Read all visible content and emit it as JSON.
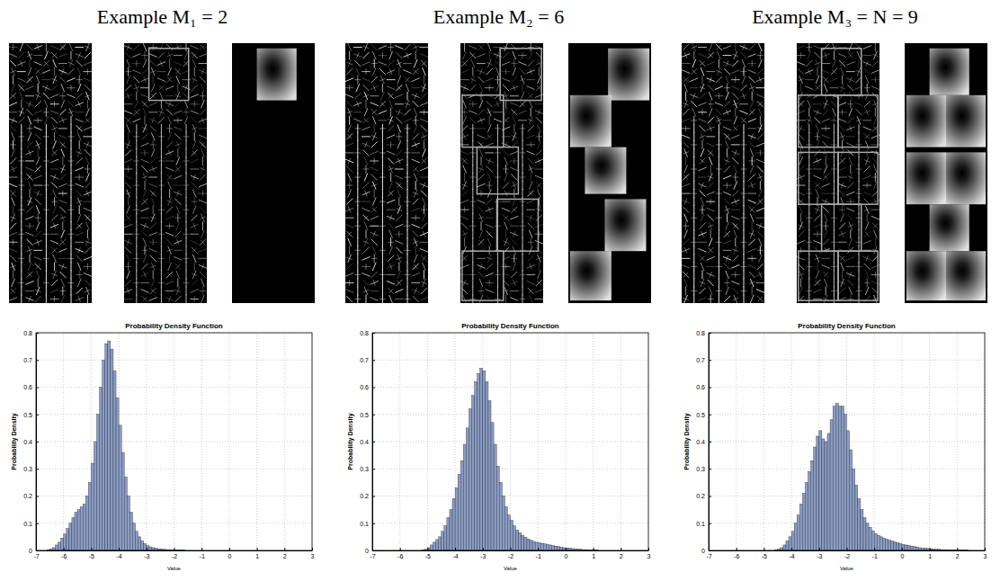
{
  "figure": {
    "panels": [
      {
        "heading": "Example M₁ = 2"
      },
      {
        "heading": "Example M₂ = 6"
      },
      {
        "heading": "Example M₃ = N = 9"
      }
    ]
  },
  "chart_data": [
    {
      "type": "histogram",
      "title": "Probability Density Function",
      "xlabel": "Value",
      "ylabel": "Probability Density",
      "bins": [
        -6.6,
        -6.5,
        -6.4,
        -6.3,
        -6.2,
        -6.1,
        -6.0,
        -5.9,
        -5.8,
        -5.7,
        -5.6,
        -5.5,
        -5.4,
        -5.3,
        -5.2,
        -5.1,
        -5.0,
        -4.9,
        -4.8,
        -4.7,
        -4.6,
        -4.5,
        -4.4,
        -4.3,
        -4.2,
        -4.1,
        -4.0,
        -3.9,
        -3.8,
        -3.7,
        -3.6,
        -3.5,
        -3.4,
        -3.3,
        -3.2,
        -3.1,
        -3.0,
        -2.9,
        -2.8,
        -2.7,
        -2.6,
        -2.5,
        -2.4,
        -2.3,
        -2.2,
        -2.1,
        -2.0,
        -1.9,
        -1.8,
        -1.7,
        -1.6
      ],
      "values": [
        0.002,
        0.005,
        0.01,
        0.02,
        0.03,
        0.045,
        0.06,
        0.08,
        0.1,
        0.12,
        0.14,
        0.15,
        0.16,
        0.17,
        0.2,
        0.25,
        0.32,
        0.4,
        0.5,
        0.6,
        0.7,
        0.76,
        0.77,
        0.74,
        0.66,
        0.56,
        0.46,
        0.36,
        0.27,
        0.2,
        0.14,
        0.1,
        0.07,
        0.05,
        0.035,
        0.025,
        0.018,
        0.013,
        0.01,
        0.008,
        0.006,
        0.005,
        0.004,
        0.003,
        0.003,
        0.002,
        0.002,
        0.001,
        0.001,
        0.001
      ],
      "color": "#8b9dc3",
      "xlim": [
        -7,
        3
      ],
      "xticks": [
        -7,
        -6,
        -5,
        -4,
        -3,
        -2,
        -1,
        0,
        1,
        2,
        3
      ],
      "ylim": [
        0,
        0.8
      ],
      "yticks": [
        0,
        0.1,
        0.2,
        0.3,
        0.4,
        0.5,
        0.6,
        0.7,
        0.8
      ],
      "grid": true
    },
    {
      "type": "histogram",
      "title": "Probability Density Function",
      "xlabel": "Value",
      "ylabel": "Probability Density",
      "bins": [
        -5.2,
        -5.1,
        -5.0,
        -4.9,
        -4.8,
        -4.7,
        -4.6,
        -4.5,
        -4.4,
        -4.3,
        -4.2,
        -4.1,
        -4.0,
        -3.9,
        -3.8,
        -3.7,
        -3.6,
        -3.5,
        -3.4,
        -3.3,
        -3.2,
        -3.1,
        -3.0,
        -2.9,
        -2.8,
        -2.7,
        -2.6,
        -2.5,
        -2.4,
        -2.3,
        -2.2,
        -2.1,
        -2.0,
        -1.9,
        -1.8,
        -1.7,
        -1.6,
        -1.5,
        -1.4,
        -1.3,
        -1.2,
        -1.1,
        -1.0,
        -0.9,
        -0.8,
        -0.7,
        -0.6,
        -0.5,
        -0.4,
        -0.3,
        -0.2,
        -0.1,
        0,
        0.1,
        0.2,
        0.3,
        0.4,
        0.5,
        0.6,
        0.7,
        0.8,
        0.9,
        1.0,
        1.1,
        1.2
      ],
      "values": [
        0.002,
        0.004,
        0.01,
        0.02,
        0.03,
        0.04,
        0.05,
        0.07,
        0.09,
        0.12,
        0.15,
        0.19,
        0.23,
        0.28,
        0.33,
        0.39,
        0.45,
        0.52,
        0.57,
        0.62,
        0.65,
        0.67,
        0.66,
        0.62,
        0.55,
        0.47,
        0.39,
        0.31,
        0.25,
        0.2,
        0.16,
        0.13,
        0.11,
        0.09,
        0.075,
        0.065,
        0.055,
        0.048,
        0.042,
        0.037,
        0.033,
        0.03,
        0.028,
        0.026,
        0.024,
        0.022,
        0.02,
        0.018,
        0.016,
        0.014,
        0.012,
        0.01,
        0.009,
        0.008,
        0.007,
        0.006,
        0.005,
        0.004,
        0.003,
        0.003,
        0.002,
        0.002,
        0.001,
        0.001
      ],
      "color": "#8b9dc3",
      "xlim": [
        -7,
        3
      ],
      "xticks": [
        -7,
        -6,
        -5,
        -4,
        -3,
        -2,
        -1,
        0,
        1,
        2,
        3
      ],
      "ylim": [
        0,
        0.8
      ],
      "yticks": [
        0,
        0.1,
        0.2,
        0.3,
        0.4,
        0.5,
        0.6,
        0.7,
        0.8
      ],
      "grid": true
    },
    {
      "type": "histogram",
      "title": "Probability Density Function",
      "xlabel": "Value",
      "ylabel": "Probability Density",
      "bins": [
        -4.6,
        -4.5,
        -4.4,
        -4.3,
        -4.2,
        -4.1,
        -4.0,
        -3.9,
        -3.8,
        -3.7,
        -3.6,
        -3.5,
        -3.4,
        -3.3,
        -3.2,
        -3.1,
        -3.0,
        -2.9,
        -2.8,
        -2.7,
        -2.6,
        -2.5,
        -2.4,
        -2.3,
        -2.2,
        -2.1,
        -2.0,
        -1.9,
        -1.8,
        -1.7,
        -1.6,
        -1.5,
        -1.4,
        -1.3,
        -1.2,
        -1.1,
        -1.0,
        -0.9,
        -0.8,
        -0.7,
        -0.6,
        -0.5,
        -0.4,
        -0.3,
        -0.2,
        -0.1,
        0,
        0.1,
        0.2,
        0.3,
        0.4,
        0.5,
        0.6,
        0.7,
        0.8,
        0.9,
        1.0,
        1.1,
        1.2,
        1.3,
        1.4,
        1.5,
        1.6,
        1.7,
        1.8,
        1.9,
        2.0,
        2.1,
        2.2,
        2.3,
        2.4
      ],
      "values": [
        0.002,
        0.005,
        0.01,
        0.02,
        0.035,
        0.05,
        0.07,
        0.1,
        0.13,
        0.17,
        0.21,
        0.25,
        0.29,
        0.33,
        0.38,
        0.42,
        0.44,
        0.41,
        0.4,
        0.43,
        0.48,
        0.53,
        0.54,
        0.53,
        0.53,
        0.5,
        0.44,
        0.37,
        0.3,
        0.24,
        0.19,
        0.15,
        0.12,
        0.1,
        0.085,
        0.072,
        0.062,
        0.055,
        0.05,
        0.045,
        0.041,
        0.037,
        0.034,
        0.031,
        0.028,
        0.025,
        0.022,
        0.02,
        0.018,
        0.016,
        0.014,
        0.012,
        0.01,
        0.009,
        0.008,
        0.007,
        0.006,
        0.005,
        0.004,
        0.004,
        0.003,
        0.003,
        0.002,
        0.002,
        0.002,
        0.001,
        0.001,
        0.001,
        0.001,
        0.001
      ],
      "color": "#8b9dc3",
      "xlim": [
        -7,
        3
      ],
      "xticks": [
        -7,
        -6,
        -5,
        -4,
        -3,
        -2,
        -1,
        0,
        1,
        2,
        3
      ],
      "ylim": [
        0,
        0.8
      ],
      "yticks": [
        0,
        0.1,
        0.2,
        0.3,
        0.4,
        0.5,
        0.6,
        0.7,
        0.8
      ],
      "grid": true
    }
  ]
}
